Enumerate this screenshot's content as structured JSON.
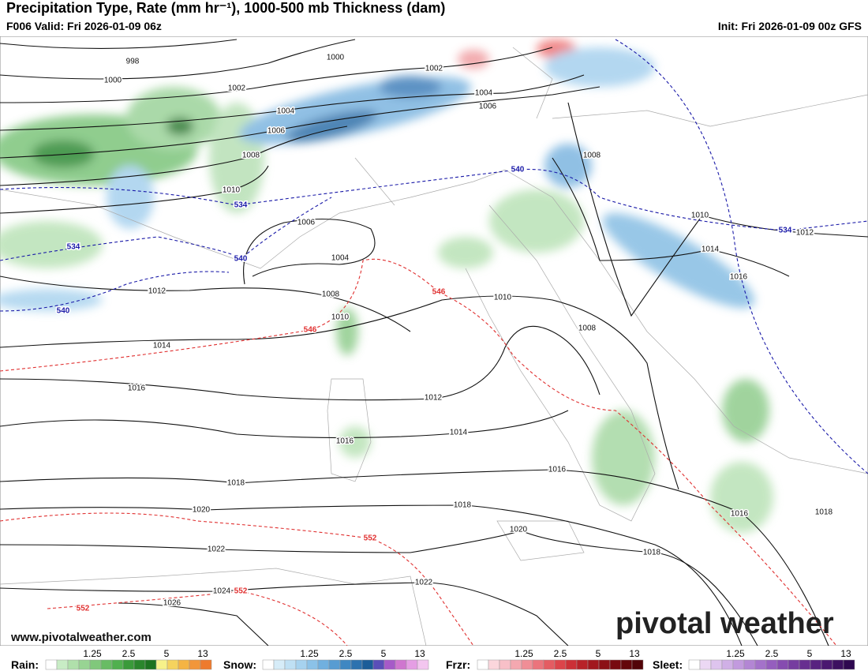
{
  "header": {
    "title": "Precipitation Type, Rate (mm hr⁻¹), 1000-500 mb Thickness (dam)",
    "valid": "F006 Valid: Fri 2026-01-09 06z",
    "init": "Init: Fri 2026-01-09 00z GFS"
  },
  "map": {
    "isobar_labels": [
      "998",
      "1000",
      "1000",
      "1002",
      "1002",
      "1004",
      "1004",
      "1006",
      "1006",
      "1008",
      "1008",
      "1010",
      "1010",
      "1006",
      "1004",
      "1012",
      "1014",
      "1016",
      "1012",
      "1008",
      "1010",
      "1010",
      "1008",
      "1014",
      "1016",
      "1012",
      "1014",
      "1016",
      "1016",
      "1018",
      "1018",
      "1020",
      "1020",
      "1016",
      "1018",
      "1022",
      "1018",
      "1022",
      "1024",
      "1026"
    ],
    "cold_thickness_labels": [
      "540",
      "534",
      "534",
      "540",
      "540",
      "534"
    ],
    "warm_thickness_labels": [
      "546",
      "546",
      "552",
      "552",
      "552"
    ]
  },
  "branding": {
    "logo": "pivotal weather",
    "url": "www.pivotalweather.com"
  },
  "legend": [
    {
      "name": "Rain:",
      "ticks": [
        "1.25",
        "2.5",
        "5",
        "13"
      ],
      "colors": [
        "#ffffff",
        "#c8ecc5",
        "#b0e0ab",
        "#98d493",
        "#80c87b",
        "#68bc64",
        "#50b04e",
        "#3a9a3a",
        "#2a862c",
        "#1c7420",
        "#f7f28a",
        "#f5d35e",
        "#f5b444",
        "#f2963a",
        "#ee7a2e"
      ]
    },
    {
      "name": "Snow:",
      "ticks": [
        "1.25",
        "2.5",
        "5",
        "13"
      ],
      "colors": [
        "#ffffff",
        "#d6ecf8",
        "#bfe0f4",
        "#a6d2ef",
        "#8bc2e8",
        "#70b0df",
        "#579cd2",
        "#3f87c2",
        "#2c72af",
        "#1b5d98",
        "#5a4fb8",
        "#a65ac8",
        "#cf76cf",
        "#e59ee4",
        "#f3c6ef"
      ]
    },
    {
      "name": "Frzr:",
      "ticks": [
        "1.25",
        "2.5",
        "5",
        "13"
      ],
      "colors": [
        "#ffffff",
        "#fbd6dc",
        "#f8c0c8",
        "#f4a8b0",
        "#f08e96",
        "#eb747c",
        "#e45c62",
        "#dc444a",
        "#cc3036",
        "#b82228",
        "#a2181e",
        "#8c1016",
        "#780a10",
        "#64060a",
        "#520408"
      ]
    },
    {
      "name": "Sleet:",
      "ticks": [
        "1.25",
        "2.5",
        "5",
        "13"
      ],
      "colors": [
        "#ffffff",
        "#ecd8f4",
        "#dec4ee",
        "#d0b0e6",
        "#c29ade",
        "#b386d4",
        "#a472ca",
        "#955ebe",
        "#864cb0",
        "#763ca0",
        "#672e90",
        "#582280",
        "#4a1870",
        "#3c1060",
        "#2e0850"
      ]
    }
  ]
}
